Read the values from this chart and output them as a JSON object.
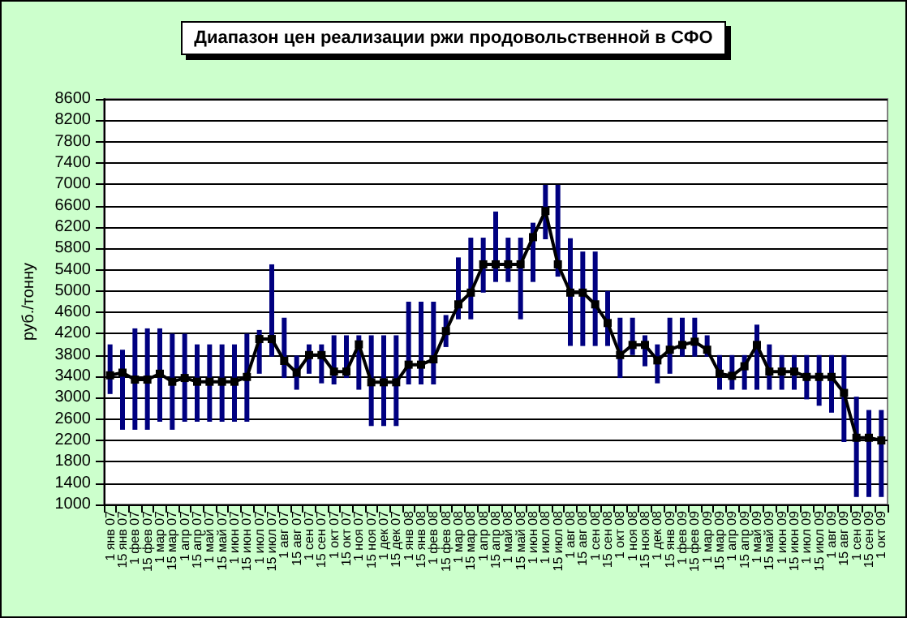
{
  "chart_data": {
    "type": "line",
    "title": "Диапазон цен реализации ржи продовольственной в СФО",
    "ylabel": "руб./тонну",
    "categories": [
      "1 янв 07",
      "15 янв 07",
      "1 фев 07",
      "15 фев 07",
      "1 мар 07",
      "15 мар 07",
      "1 апр 07",
      "15 апр 07",
      "1 май 07",
      "15 май 07",
      "1 июн 07",
      "15 июн 07",
      "1 июл 07",
      "15 июл 07",
      "1 авг 07",
      "15 авг 07",
      "1 сен 07",
      "15 сен 07",
      "1 окт 07",
      "15 окт 07",
      "1 ноя 07",
      "15 ноя 07",
      "1 дек 07",
      "15 дек 07",
      "1 янв 08",
      "15 янв 08",
      "1 фев 08",
      "15 фев 08",
      "1 мар 08",
      "15 мар 08",
      "1 апр 08",
      "15 апр 08",
      "1 май 08",
      "15 май 08",
      "1 июн 08",
      "1 июл 08",
      "15 июл 08",
      "1 авг 08",
      "15 авг 08",
      "1 сен 08",
      "15 сен 08",
      "1 окт 08",
      "1 ноя 08",
      "15 ноя 08",
      "1 дек 08",
      "15 янв 09",
      "1 фев 09",
      "15 фев 09",
      "1 мар 09",
      "15 мар 09",
      "1 апр 09",
      "15 апр 09",
      "1 май 09",
      "15 май 09",
      "1 июн 09",
      "15 июн 09",
      "1 июл 09",
      "15 июл 09",
      "1 авг 09",
      "15 авг 09",
      "1 сен 09",
      "15 сен 09",
      "1 окт 09"
    ],
    "series": [
      {
        "type": "bar",
        "color": "#000080",
        "base": [
          3070,
          2400,
          2400,
          2400,
          2550,
          2400,
          2550,
          2550,
          2550,
          2550,
          2550,
          2550,
          3450,
          3770,
          3370,
          3150,
          3450,
          3270,
          3250,
          3370,
          3150,
          2470,
          2470,
          2470,
          3250,
          3250,
          3250,
          3950,
          4470,
          4470,
          4970,
          5170,
          5170,
          4470,
          5170,
          5970,
          5270,
          3970,
          3970,
          3970,
          3970,
          3370,
          3800,
          3590,
          3270,
          3450,
          3770,
          3770,
          3770,
          3150,
          3150,
          3150,
          3150,
          3150,
          3150,
          3150,
          2970,
          2850,
          2720,
          2170,
          1140,
          1140,
          1140
        ],
        "values": [
          930,
          1500,
          1900,
          1900,
          1750,
          1800,
          1650,
          1450,
          1450,
          1450,
          1450,
          1650,
          820,
          1730,
          1130,
          640,
          550,
          730,
          920,
          800,
          1020,
          1700,
          1700,
          1700,
          1550,
          1550,
          1550,
          600,
          1160,
          1530,
          1030,
          1320,
          830,
          1530,
          1110,
          1020,
          1720,
          2020,
          1770,
          1770,
          1030,
          1130,
          700,
          580,
          730,
          1050,
          730,
          730,
          400,
          650,
          650,
          650,
          1220,
          850,
          650,
          650,
          830,
          950,
          1080,
          1630,
          1880,
          1630,
          1630
        ]
      },
      {
        "color": "#000000",
        "values": [
          3420,
          3470,
          3340,
          3340,
          3450,
          3300,
          3370,
          3300,
          3300,
          3300,
          3300,
          3390,
          4100,
          4100,
          3690,
          3470,
          3800,
          3800,
          3490,
          3490,
          4000,
          3290,
          3290,
          3290,
          3620,
          3620,
          3720,
          4250,
          4750,
          4970,
          5500,
          5500,
          5500,
          5500,
          6010,
          6500,
          5500,
          4970,
          4970,
          4750,
          4400,
          3800,
          3990,
          3990,
          3700,
          3900,
          3990,
          4050,
          3900,
          3450,
          3410,
          3590,
          3990,
          3490,
          3490,
          3490,
          3390,
          3390,
          3390,
          3090,
          2250,
          2250,
          2200
        ]
      }
    ],
    "ylim": [
      1000,
      8600
    ],
    "yticks": [
      1000,
      1400,
      1800,
      2200,
      2600,
      3000,
      3400,
      3800,
      4200,
      4600,
      5000,
      5400,
      5800,
      6200,
      6600,
      7000,
      7400,
      7800,
      8200,
      8600
    ],
    "grid": "y",
    "marker": "square",
    "line_style": "solid"
  }
}
